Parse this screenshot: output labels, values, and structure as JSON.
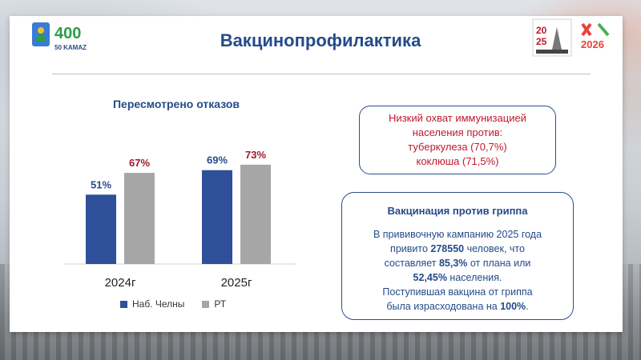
{
  "header": {
    "title": "Вакцинопрофилактика"
  },
  "chart_data": {
    "type": "bar",
    "title": "Пересмотрено отказов",
    "categories": [
      "2024г",
      "2025г"
    ],
    "series": [
      {
        "name": "Наб. Челны",
        "values": [
          51,
          69
        ],
        "labels": [
          "51%",
          "69%"
        ],
        "color": "#2f4f9a"
      },
      {
        "name": "РТ",
        "values": [
          67,
          73
        ],
        "labels": [
          "67%",
          "73%"
        ],
        "color": "#a6a6a6"
      }
    ],
    "ylim": [
      0,
      100
    ],
    "label_colors": [
      "#244b8a",
      "#a0182a"
    ],
    "legend_position": "bottom",
    "grid": false
  },
  "box1": {
    "lines": [
      "Низкий охват иммунизацией",
      "населения против:",
      "туберкулеза (70,7%)",
      "коклюша (71,5%)"
    ]
  },
  "box2": {
    "heading": "Вакцинация против гриппа",
    "l1": "В прививочную кампанию 2025 года",
    "l2_a": "привито ",
    "l2_b": "278550",
    "l2_c": " человек, что",
    "l3_a": "составляет ",
    "l3_b": "85,3%",
    "l3_c": " от плана или",
    "l4_a": "52,45%",
    "l4_b": " населения.",
    "l5": "Поступившая вакцина от гриппа",
    "l6_a": "была израсходована на ",
    "l6_b": "100%",
    "l6_c": "."
  }
}
